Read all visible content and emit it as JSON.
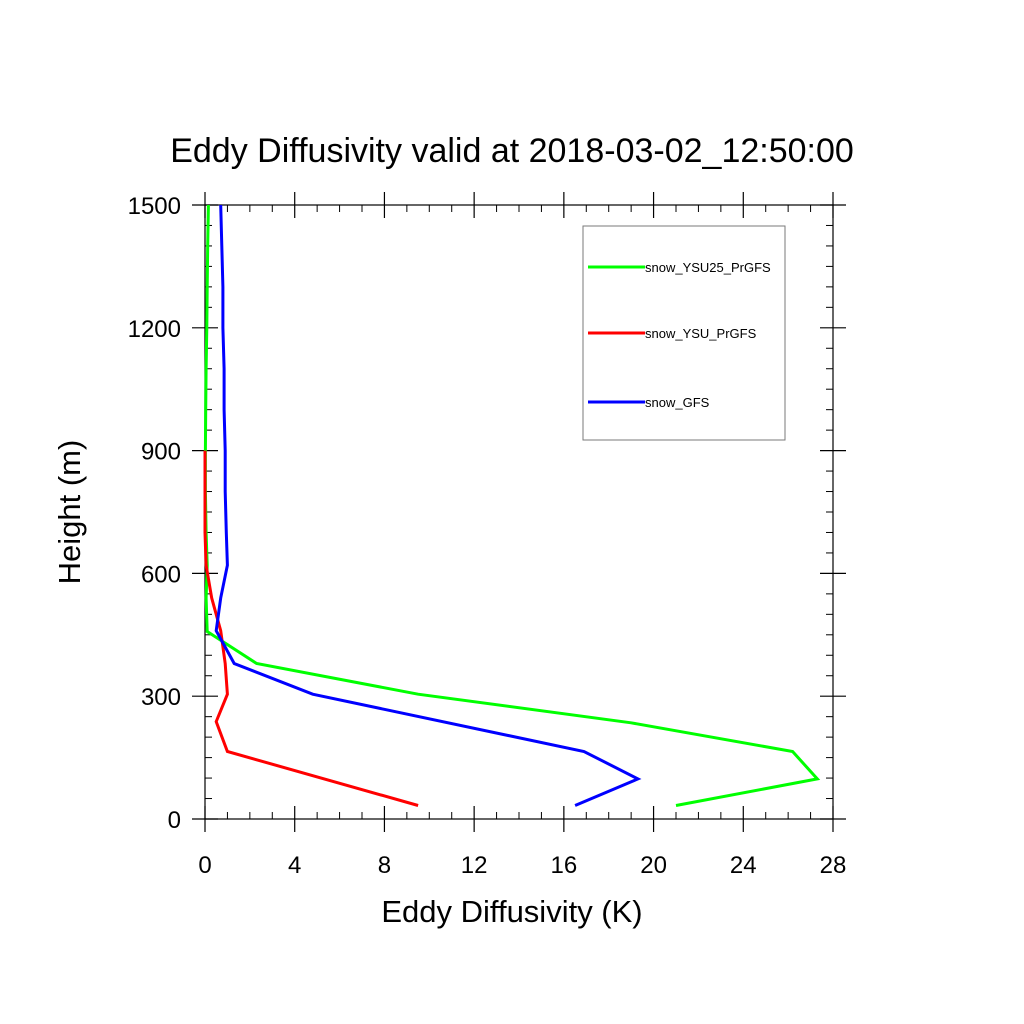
{
  "chart_data": {
    "type": "line",
    "title": "Eddy Diffusivity valid at 2018-03-02_12:50:00",
    "xlabel": "Eddy Diffusivity (K)",
    "ylabel": "Height (m)",
    "xlim": [
      0,
      28
    ],
    "ylim": [
      0,
      1500
    ],
    "xticks": [
      0,
      4,
      8,
      12,
      16,
      20,
      24,
      28
    ],
    "yticks": [
      0,
      300,
      600,
      900,
      1200,
      1500
    ],
    "x_minor_step": 1,
    "y_minor_step": 50,
    "grid": false,
    "legend_position": "top-right",
    "series": [
      {
        "name": "snow_YSU25_PrGFS",
        "color": "#00ff00",
        "points": [
          [
            21.0,
            33
          ],
          [
            27.3,
            98
          ],
          [
            26.2,
            165
          ],
          [
            19.0,
            235
          ],
          [
            9.5,
            305
          ],
          [
            2.3,
            380
          ],
          [
            0.1,
            458
          ],
          [
            0.05,
            540
          ],
          [
            0.1,
            620
          ],
          [
            0.05,
            700
          ],
          [
            0.02,
            800
          ],
          [
            0.02,
            900
          ],
          [
            0.03,
            1000
          ],
          [
            0.05,
            1100
          ],
          [
            0.08,
            1200
          ],
          [
            0.1,
            1300
          ],
          [
            0.12,
            1400
          ],
          [
            0.15,
            1500
          ]
        ]
      },
      {
        "name": "snow_YSU_PrGFS",
        "color": "#ff0000",
        "points": [
          [
            9.5,
            33
          ],
          [
            1.0,
            165
          ],
          [
            0.5,
            238
          ],
          [
            1.0,
            305
          ],
          [
            0.9,
            380
          ],
          [
            0.7,
            460
          ],
          [
            0.3,
            540
          ],
          [
            0.05,
            620
          ],
          [
            0.0,
            700
          ],
          [
            0.0,
            800
          ],
          [
            0.0,
            900
          ]
        ]
      },
      {
        "name": "snow_GFS",
        "color": "#0000ff",
        "points": [
          [
            16.5,
            33
          ],
          [
            19.3,
            98
          ],
          [
            16.9,
            165
          ],
          [
            4.8,
            305
          ],
          [
            1.3,
            380
          ],
          [
            0.5,
            460
          ],
          [
            0.7,
            540
          ],
          [
            1.0,
            620
          ],
          [
            0.95,
            700
          ],
          [
            0.9,
            800
          ],
          [
            0.9,
            900
          ],
          [
            0.85,
            1000
          ],
          [
            0.85,
            1100
          ],
          [
            0.8,
            1200
          ],
          [
            0.8,
            1300
          ],
          [
            0.75,
            1400
          ],
          [
            0.7,
            1500
          ]
        ]
      }
    ]
  }
}
